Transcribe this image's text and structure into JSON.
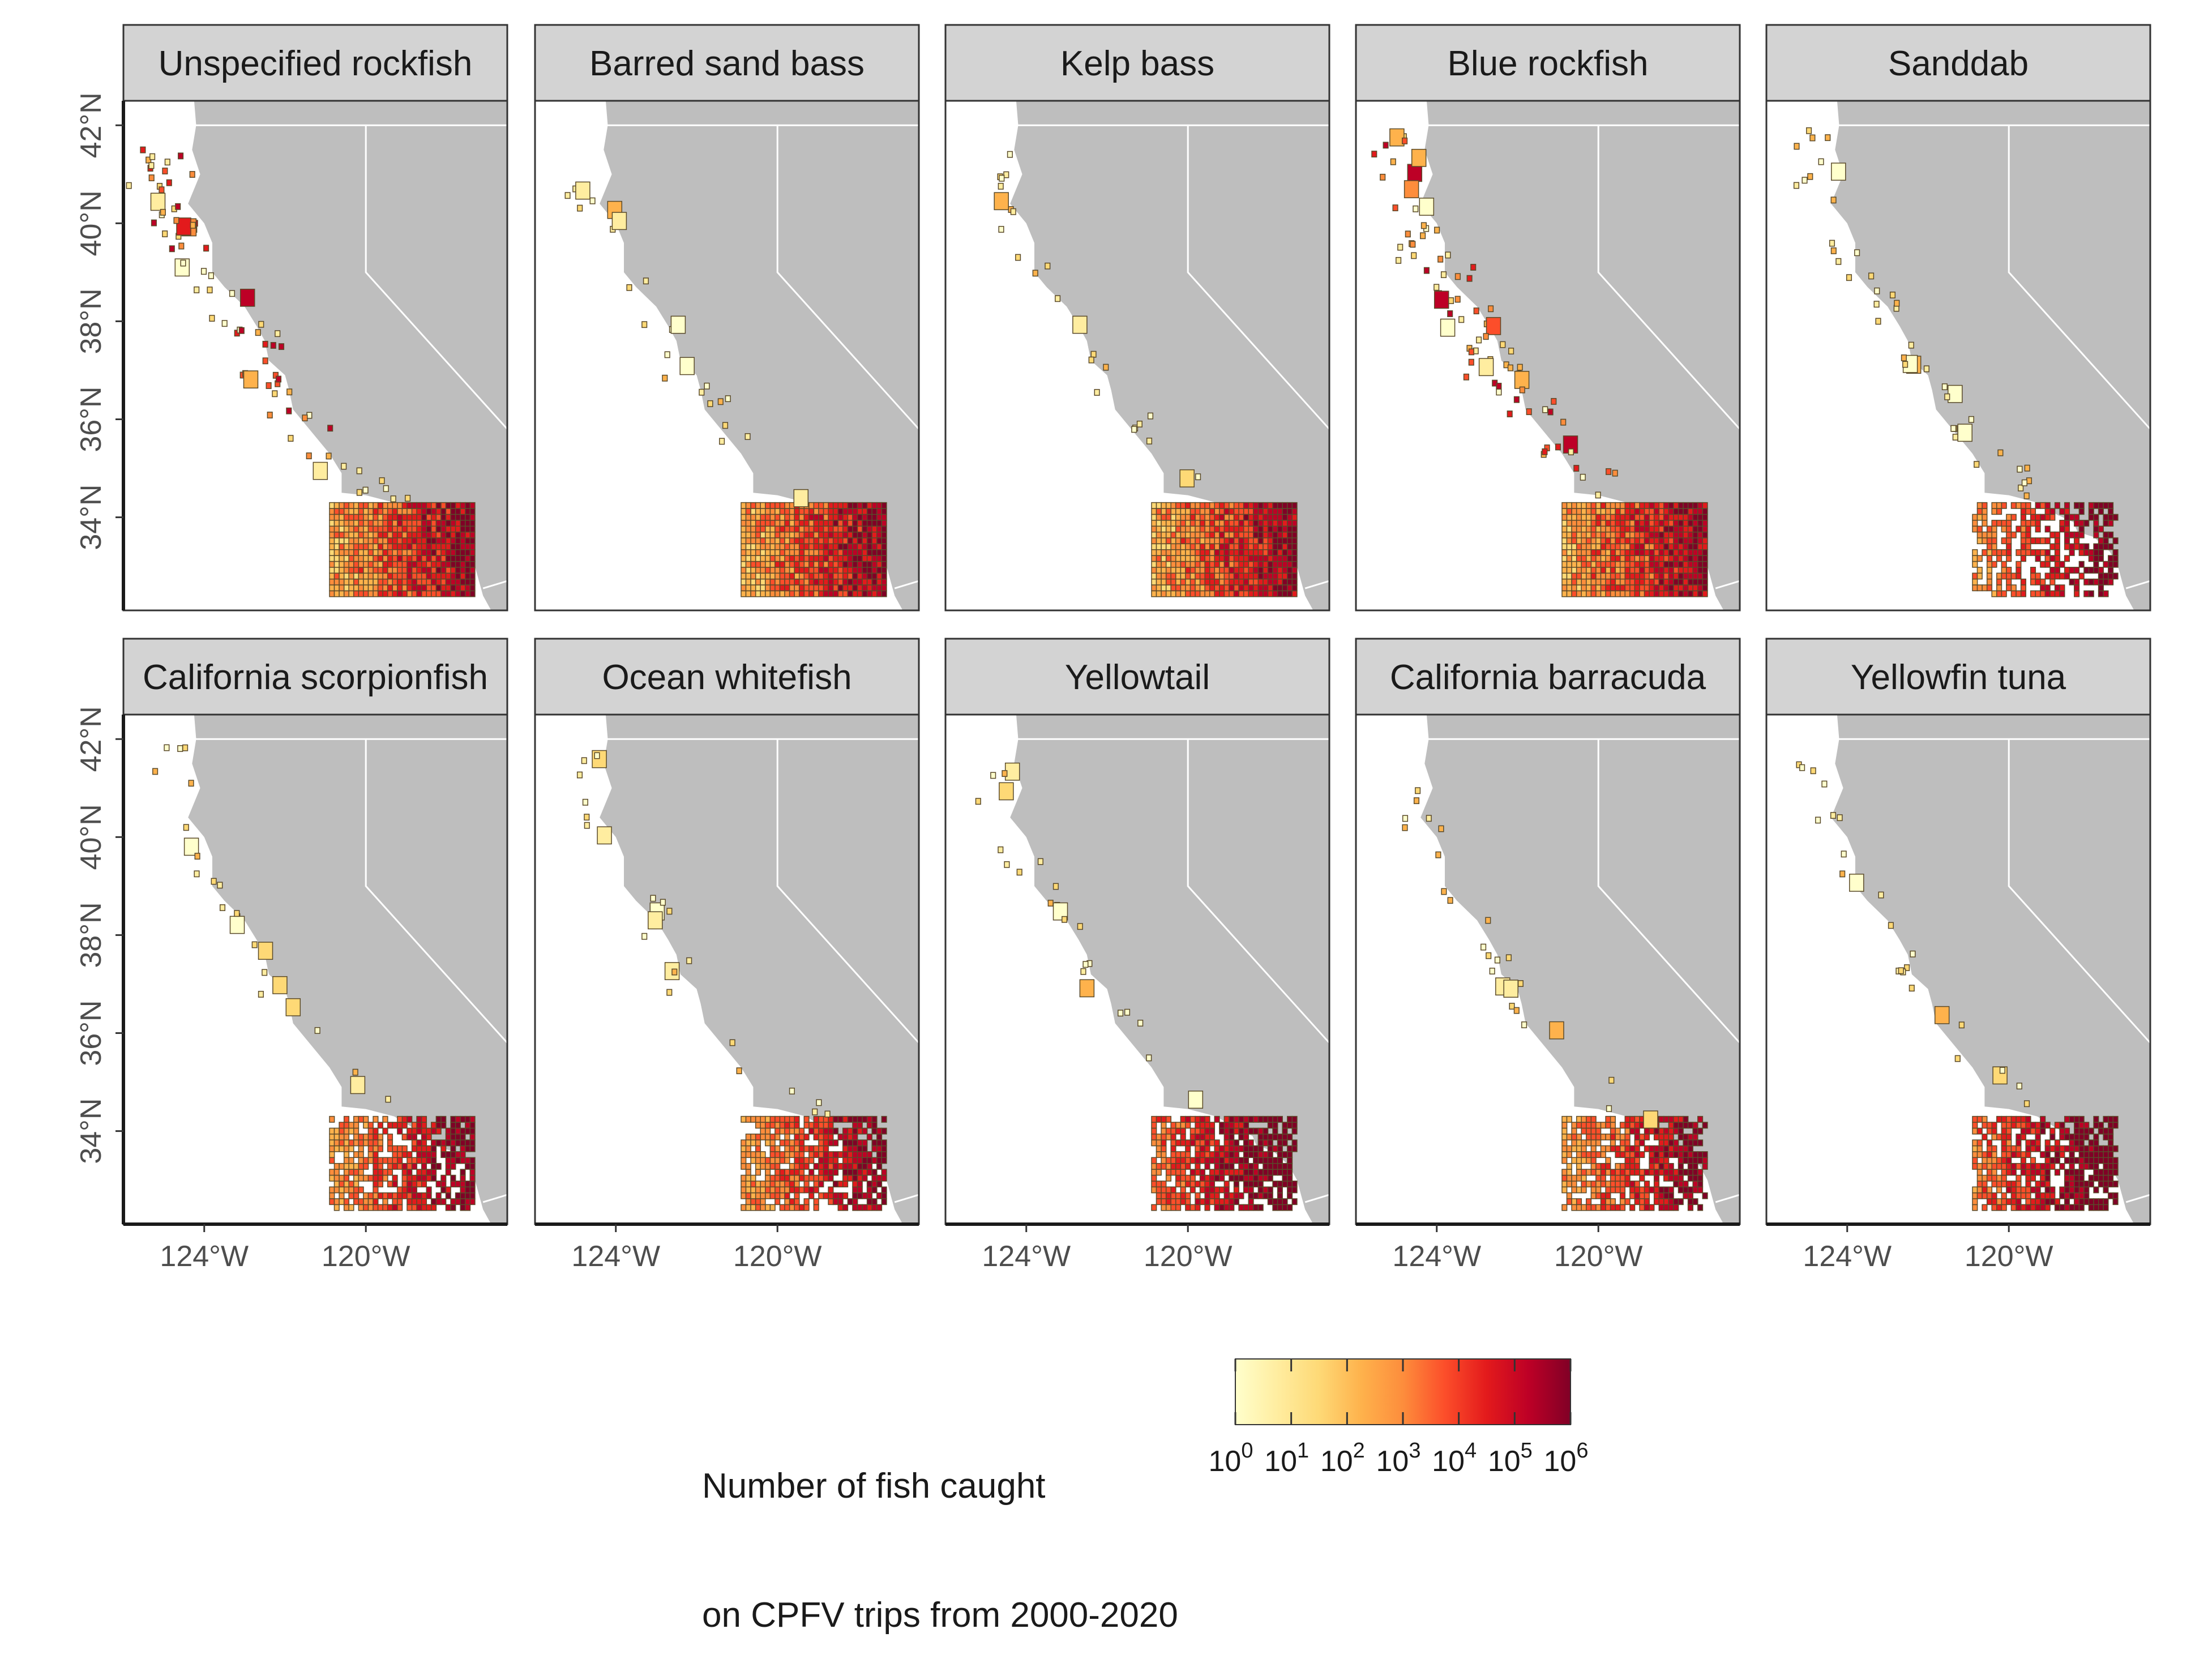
{
  "panels": [
    "Unspecified rockfish",
    "Barred sand bass",
    "Kelp bass",
    "Blue rockfish",
    "Sanddab",
    "California scorpionfish",
    "Ocean whitefish",
    "Yellowtail",
    "California barracuda",
    "Yellowfin tuna"
  ],
  "axes": {
    "y_ticks": [
      "42°N",
      "40°N",
      "38°N",
      "36°N",
      "34°N"
    ],
    "y_values": [
      42,
      40,
      38,
      36,
      34
    ],
    "x_ticks": [
      "124°W",
      "120°W"
    ],
    "x_values": [
      -124,
      -120
    ]
  },
  "legend": {
    "title_line1": "Number of fish caught",
    "title_line2": "on CPFV trips from 2000-2020",
    "ticks": [
      {
        "base": "10",
        "exp": "0"
      },
      {
        "base": "10",
        "exp": "1"
      },
      {
        "base": "10",
        "exp": "2"
      },
      {
        "base": "10",
        "exp": "3"
      },
      {
        "base": "10",
        "exp": "4"
      },
      {
        "base": "10",
        "exp": "5"
      },
      {
        "base": "10",
        "exp": "6"
      }
    ],
    "colors": [
      "#ffffcc",
      "#ffeda0",
      "#fed976",
      "#feb24c",
      "#fd8d3c",
      "#fc4e2a",
      "#e31a1c",
      "#bd0026",
      "#800026"
    ]
  },
  "colors": {
    "land": "#bebebe",
    "strip": "#d3d3d3",
    "border_line": "#ffffff",
    "cell_outline": "#5a4a2a"
  }
}
